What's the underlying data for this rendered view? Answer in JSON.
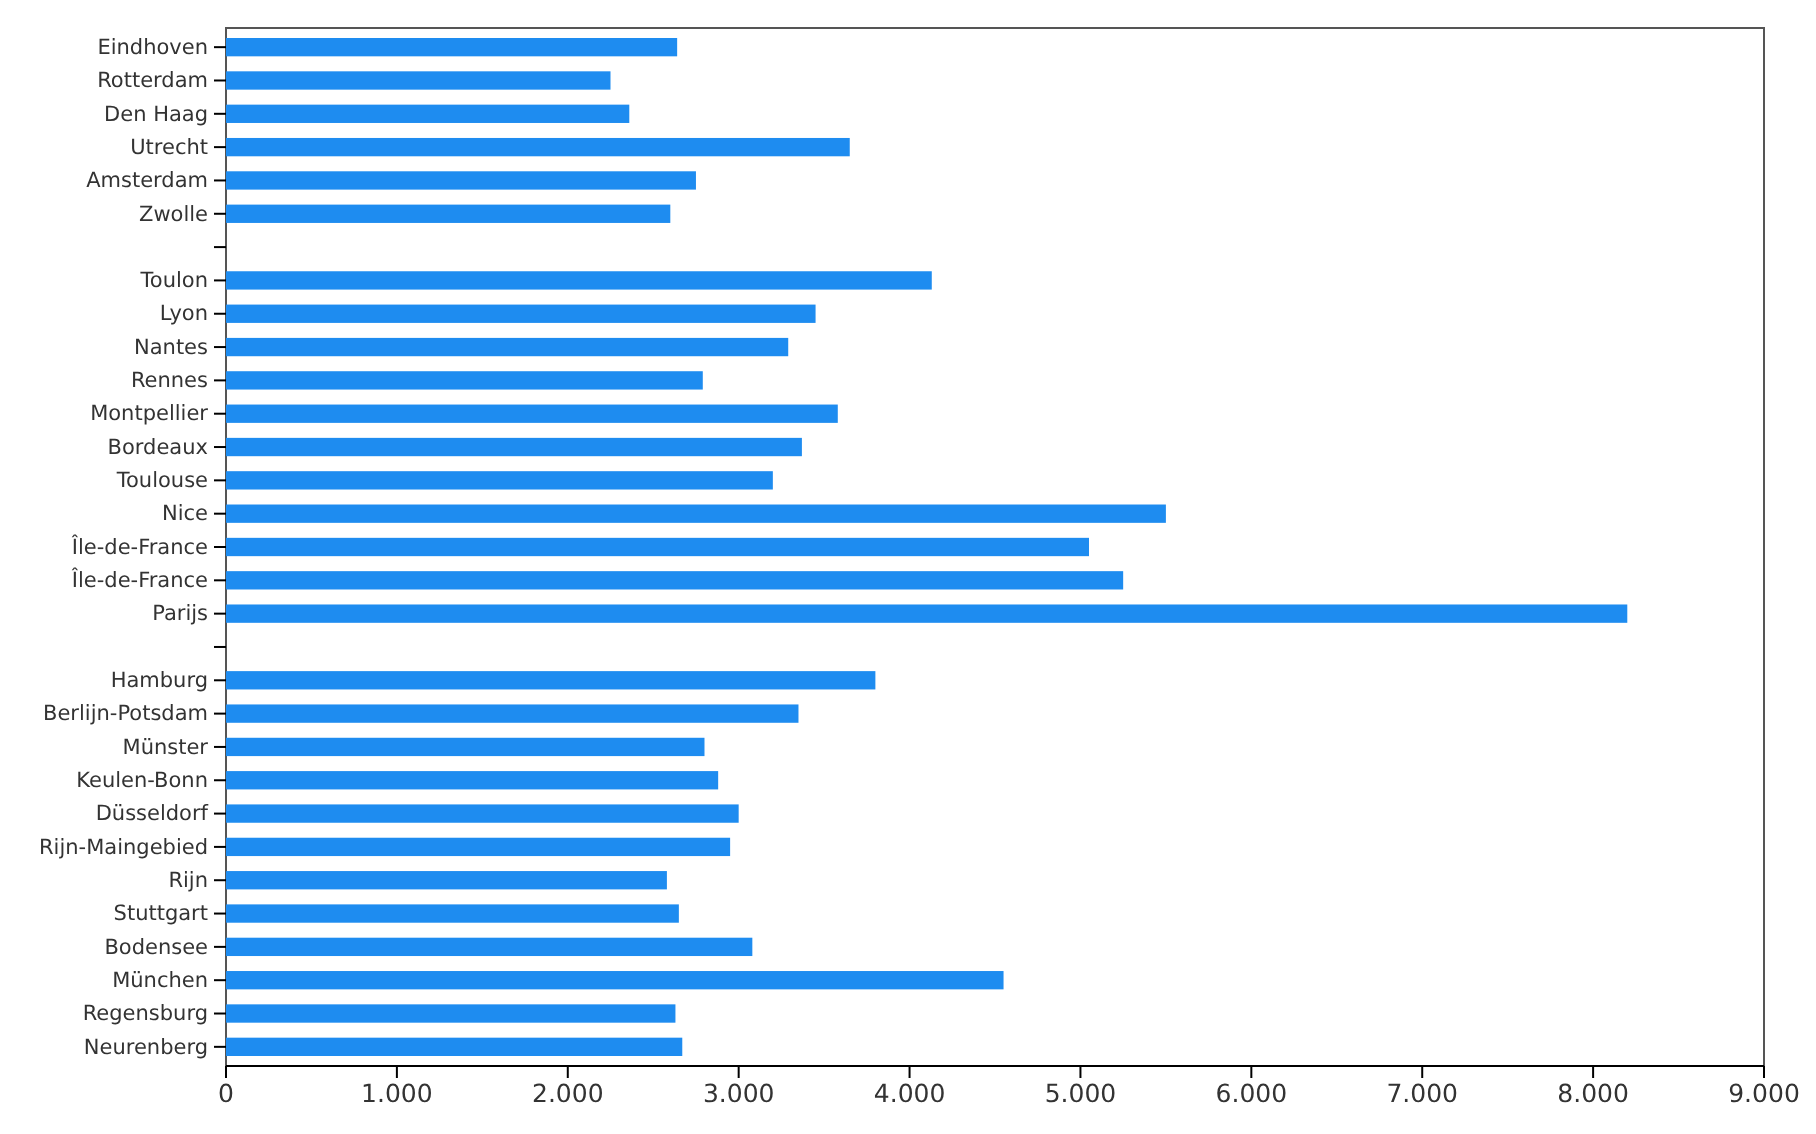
{
  "chart_data": {
    "type": "bar",
    "orientation": "horizontal",
    "color": "#1e8cf0",
    "categories": [
      "Eindhoven",
      "Rotterdam",
      "Den Haag",
      "Utrecht",
      "Amsterdam",
      "Zwolle",
      null,
      "Toulon",
      "Lyon",
      "Nantes",
      "Rennes",
      "Montpellier",
      "Bordeaux",
      "Toulouse",
      "Nice",
      "Île-de-France",
      "Île-de-France",
      "Parijs",
      null,
      "Hamburg",
      "Berlijn-Potsdam",
      "Münster",
      "Keulen-Bonn",
      "Düsseldorf",
      "Rijn-Maingebied",
      "Rijn",
      "Stuttgart",
      "Bodensee",
      "München",
      "Regensburg",
      "Neurenberg"
    ],
    "values": [
      2640,
      2250,
      2360,
      3650,
      2750,
      2600,
      null,
      4130,
      3450,
      3290,
      2790,
      3580,
      3370,
      3200,
      5500,
      5050,
      5250,
      8200,
      null,
      3800,
      3350,
      2800,
      2880,
      3000,
      2950,
      2580,
      2650,
      3080,
      4550,
      2630,
      2670
    ],
    "xlim": [
      0,
      9000
    ],
    "xticks": [
      {
        "value": 0,
        "label": "0"
      },
      {
        "value": 1000,
        "label": "1.000"
      },
      {
        "value": 2000,
        "label": "2.000"
      },
      {
        "value": 3000,
        "label": "3.000"
      },
      {
        "value": 4000,
        "label": "4.000"
      },
      {
        "value": 5000,
        "label": "5.000"
      },
      {
        "value": 6000,
        "label": "6.000"
      },
      {
        "value": 7000,
        "label": "7.000"
      },
      {
        "value": 8000,
        "label": "8.000"
      },
      {
        "value": 9000,
        "label": "9.000"
      }
    ],
    "grid": false
  }
}
